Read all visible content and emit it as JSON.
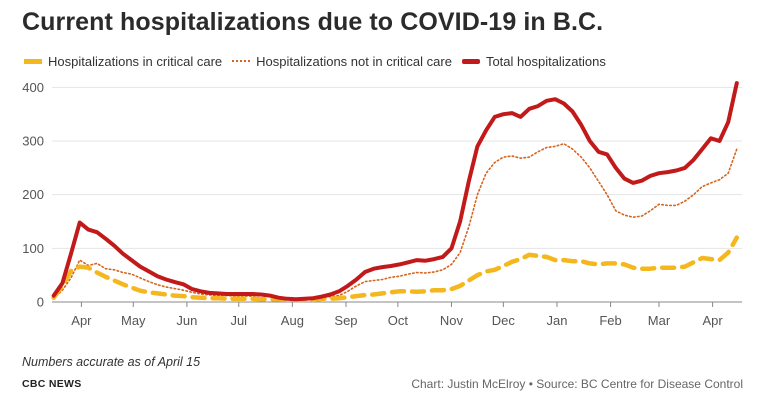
{
  "title": "Current hospitalizations due to COVID-19 in B.C.",
  "note": "Numbers accurate as of April 15",
  "brand": "CBC NEWS",
  "credit": "Chart: Justin McElroy • Source: BC Centre for Disease Control",
  "colors": {
    "critical": "#f5b71e",
    "non_critical": "#d5641f",
    "total": "#c21a1a",
    "grid": "#e4e4e4",
    "axis": "#888888"
  },
  "chart_data": {
    "type": "line",
    "xlabel": "",
    "ylabel": "",
    "x_unit": "date",
    "xlim": [
      "2020-03-15",
      "2021-04-18"
    ],
    "ylim": [
      0,
      410
    ],
    "yticks": [
      0,
      100,
      200,
      300,
      400
    ],
    "xticks": [
      {
        "label": "Apr",
        "date": "2020-04-01"
      },
      {
        "label": "May",
        "date": "2020-05-01"
      },
      {
        "label": "Jun",
        "date": "2020-06-01"
      },
      {
        "label": "Jul",
        "date": "2020-07-01"
      },
      {
        "label": "Aug",
        "date": "2020-08-01"
      },
      {
        "label": "Sep",
        "date": "2020-09-01"
      },
      {
        "label": "Oct",
        "date": "2020-10-01"
      },
      {
        "label": "Nov",
        "date": "2020-11-01"
      },
      {
        "label": "Dec",
        "date": "2020-12-01"
      },
      {
        "label": "Jan",
        "date": "2021-01-01"
      },
      {
        "label": "Feb",
        "date": "2021-02-01"
      },
      {
        "label": "Mar",
        "date": "2021-03-01"
      },
      {
        "label": "Apr",
        "date": "2021-04-01"
      }
    ],
    "grid": "horizontal",
    "legend_position": "top",
    "x": [
      "2020-03-16",
      "2020-03-21",
      "2020-03-26",
      "2020-03-31",
      "2020-04-05",
      "2020-04-10",
      "2020-04-15",
      "2020-04-20",
      "2020-04-25",
      "2020-04-30",
      "2020-05-05",
      "2020-05-10",
      "2020-05-15",
      "2020-05-20",
      "2020-05-25",
      "2020-05-30",
      "2020-06-04",
      "2020-06-09",
      "2020-06-14",
      "2020-06-19",
      "2020-06-24",
      "2020-06-29",
      "2020-07-04",
      "2020-07-09",
      "2020-07-14",
      "2020-07-19",
      "2020-07-24",
      "2020-07-29",
      "2020-08-03",
      "2020-08-08",
      "2020-08-13",
      "2020-08-18",
      "2020-08-23",
      "2020-08-28",
      "2020-09-02",
      "2020-09-07",
      "2020-09-12",
      "2020-09-17",
      "2020-09-22",
      "2020-09-27",
      "2020-10-02",
      "2020-10-07",
      "2020-10-12",
      "2020-10-17",
      "2020-10-22",
      "2020-10-27",
      "2020-11-01",
      "2020-11-06",
      "2020-11-11",
      "2020-11-16",
      "2020-11-21",
      "2020-11-26",
      "2020-12-01",
      "2020-12-06",
      "2020-12-11",
      "2020-12-16",
      "2020-12-21",
      "2020-12-26",
      "2020-12-31",
      "2021-01-05",
      "2021-01-10",
      "2021-01-15",
      "2021-01-20",
      "2021-01-25",
      "2021-01-30",
      "2021-02-04",
      "2021-02-09",
      "2021-02-14",
      "2021-02-19",
      "2021-02-24",
      "2021-03-01",
      "2021-03-06",
      "2021-03-11",
      "2021-03-16",
      "2021-03-21",
      "2021-03-26",
      "2021-03-31",
      "2021-04-05",
      "2021-04-10",
      "2021-04-15"
    ],
    "series": [
      {
        "name": "Hospitalizations in critical care",
        "style": "dashed",
        "values": [
          8,
          30,
          58,
          66,
          64,
          55,
          47,
          40,
          33,
          27,
          21,
          18,
          16,
          14,
          12,
          11,
          9,
          8,
          7,
          7,
          6,
          6,
          6,
          6,
          5,
          5,
          5,
          4,
          4,
          4,
          4,
          6,
          6,
          7,
          9,
          11,
          13,
          14,
          16,
          18,
          20,
          20,
          19,
          20,
          22,
          22,
          24,
          30,
          40,
          50,
          57,
          60,
          67,
          75,
          80,
          88,
          86,
          84,
          78,
          78,
          76,
          76,
          72,
          70,
          72,
          72,
          70,
          64,
          62,
          62,
          64,
          64,
          64,
          66,
          74,
          82,
          80,
          78,
          92,
          120
        ]
      },
      {
        "name": "Hospitalizations not in critical care",
        "style": "dotted",
        "values": [
          6,
          22,
          45,
          78,
          68,
          72,
          62,
          60,
          55,
          52,
          45,
          38,
          32,
          28,
          25,
          22,
          18,
          15,
          13,
          12,
          12,
          11,
          11,
          11,
          12,
          10,
          8,
          6,
          5,
          6,
          5,
          8,
          10,
          12,
          20,
          30,
          38,
          40,
          42,
          46,
          48,
          52,
          55,
          54,
          56,
          60,
          70,
          92,
          140,
          200,
          240,
          260,
          270,
          272,
          268,
          270,
          280,
          288,
          290,
          295,
          285,
          270,
          250,
          225,
          200,
          170,
          162,
          158,
          160,
          170,
          182,
          180,
          180,
          188,
          200,
          215,
          222,
          228,
          240,
          285
        ]
      },
      {
        "name": "Total hospitalizations",
        "style": "solid",
        "values": [
          12,
          35,
          90,
          148,
          135,
          130,
          118,
          105,
          90,
          78,
          66,
          57,
          48,
          42,
          37,
          33,
          24,
          20,
          17,
          16,
          15,
          15,
          15,
          15,
          14,
          12,
          8,
          6,
          5,
          6,
          7,
          10,
          14,
          20,
          30,
          42,
          56,
          62,
          65,
          67,
          70,
          74,
          78,
          77,
          80,
          84,
          100,
          150,
          225,
          290,
          320,
          345,
          350,
          352,
          345,
          360,
          365,
          375,
          378,
          370,
          355,
          330,
          300,
          280,
          275,
          250,
          230,
          222,
          226,
          235,
          240,
          242,
          245,
          250,
          265,
          285,
          305,
          300,
          335,
          408
        ]
      }
    ]
  }
}
